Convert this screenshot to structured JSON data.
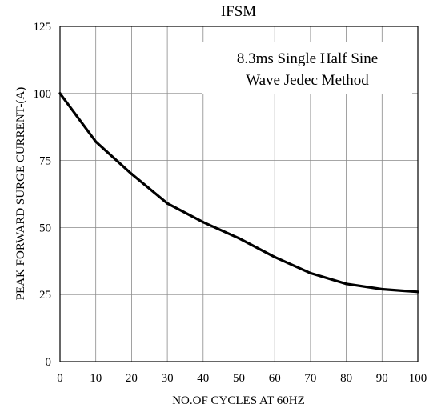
{
  "chart_data": {
    "type": "line",
    "title": "IFSM",
    "xlabel": "NO.OF CYCLES AT 60HZ",
    "ylabel": "PEAK FORWARD SURGE CURRENT-(A)",
    "xlim": [
      0,
      100
    ],
    "ylim": [
      0,
      125
    ],
    "xticks": [
      "0",
      "10",
      "20",
      "30",
      "40",
      "50",
      "60",
      "70",
      "80",
      "90",
      "100"
    ],
    "yticks": [
      "0",
      "25",
      "50",
      "75",
      "100",
      "125"
    ],
    "grid": true,
    "annotation": [
      "8.3ms Single Half Sine",
      "Wave Jedec Method"
    ],
    "series": [
      {
        "x": [
          0,
          10,
          20,
          30,
          40,
          50,
          60,
          70,
          80,
          90,
          100
        ],
        "y": [
          100,
          82,
          70,
          59,
          52,
          46,
          39,
          33,
          29,
          27,
          26
        ]
      }
    ]
  }
}
